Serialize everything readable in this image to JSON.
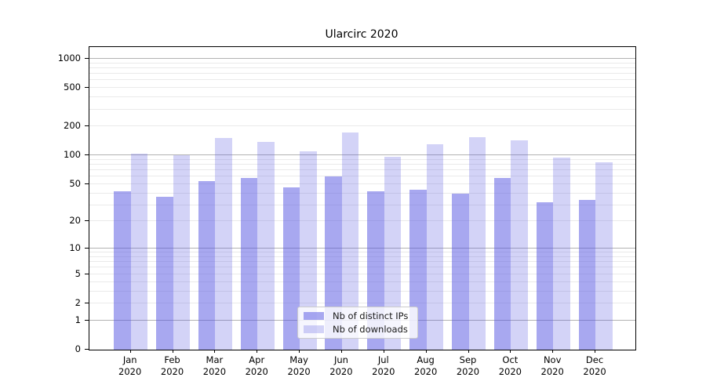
{
  "title": "Ularcirc 2020",
  "colors": {
    "ips_fill": "rgba(81,81,225,0.50)",
    "downloads_fill": "rgba(81,81,225,0.25)",
    "major_gridline": "#b2b2b2",
    "minor_gridline": "#eaeaea",
    "axis_line": "#000000",
    "text": "#1a1a1a",
    "legend_background": "rgba(255,255,255,0.8)",
    "legend_border": "#cccccc"
  },
  "chart_data": {
    "type": "bar",
    "title": "Ularcirc 2020",
    "categories": [
      "Jan 2020",
      "Feb 2020",
      "Mar 2020",
      "Apr 2020",
      "May 2020",
      "Jun 2020",
      "Jul 2020",
      "Aug 2020",
      "Sep 2020",
      "Oct 2020",
      "Nov 2020",
      "Dec 2020"
    ],
    "months": [
      "Jan",
      "Feb",
      "Mar",
      "Apr",
      "May",
      "Jun",
      "Jul",
      "Aug",
      "Sep",
      "Oct",
      "Nov",
      "Dec"
    ],
    "year_line": "2020",
    "series": [
      {
        "name": "Nb of distinct IPs",
        "values": [
          42,
          37,
          54,
          58,
          46,
          60,
          42,
          44,
          40,
          58,
          32,
          34
        ]
      },
      {
        "name": "Nb of downloads",
        "values": [
          105,
          100,
          152,
          137,
          111,
          174,
          96,
          131,
          154,
          143,
          94,
          85
        ]
      }
    ],
    "yscale": "log1p",
    "ylim": [
      0,
      1320
    ],
    "yticks": [
      1000,
      500,
      200,
      100,
      50,
      20,
      10,
      5,
      2,
      1,
      0
    ],
    "grid": "horizontal, major decades dark + minor light",
    "legend_position": "lower center inside plot"
  }
}
